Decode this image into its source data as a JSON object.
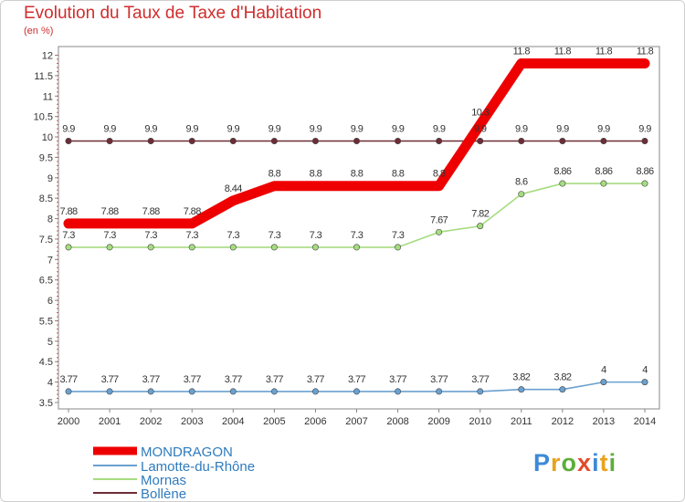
{
  "header": {
    "title": "Evolution du Taux de Taxe d'Habitation",
    "subtitle": "(en %)"
  },
  "brand": {
    "text": "Proxiti",
    "letters": [
      "P",
      "r",
      "o",
      "x",
      "i",
      "t",
      "i"
    ],
    "colors": [
      "#3d8ad6",
      "#e8a21f",
      "#5cae3a",
      "#e24b2a",
      "#3d8ad6",
      "#e8a21f",
      "#5cae3a"
    ]
  },
  "chart_data": {
    "type": "line",
    "x": [
      "2000",
      "2001",
      "2002",
      "2003",
      "2004",
      "2005",
      "2006",
      "2007",
      "2008",
      "2009",
      "2010",
      "2011",
      "2012",
      "2013",
      "2014"
    ],
    "ylim": [
      3.5,
      12
    ],
    "yticks": [
      "3.5",
      "4",
      "4.5",
      "5",
      "5.5",
      "6",
      "6.5",
      "7",
      "7.5",
      "8",
      "8.5",
      "9",
      "9.5",
      "10",
      "10.5",
      "11",
      "11.5",
      "12"
    ],
    "grid": false,
    "legend_position": "bottom-left",
    "series": [
      {
        "name": "MONDRAGON",
        "color": "#ee0000",
        "values": [
          7.88,
          7.88,
          7.88,
          7.88,
          8.44,
          8.8,
          8.8,
          8.8,
          8.8,
          8.8,
          10.3,
          11.8,
          11.8,
          11.8,
          11.8
        ],
        "labels": [
          "7.88",
          "7.88",
          "7.88",
          "7.88",
          "8.44",
          "8.8",
          "8.8",
          "8.8",
          "8.8",
          "8.8",
          "10.3",
          "11.8",
          "11.8",
          "11.8",
          "11.8"
        ]
      },
      {
        "name": "Lamotte-du-Rhône",
        "color": "#6aa0cf",
        "values": [
          3.77,
          3.77,
          3.77,
          3.77,
          3.77,
          3.77,
          3.77,
          3.77,
          3.77,
          3.77,
          3.77,
          3.82,
          3.82,
          4,
          4
        ],
        "labels": [
          "3.77",
          "3.77",
          "3.77",
          "3.77",
          "3.77",
          "3.77",
          "3.77",
          "3.77",
          "3.77",
          "3.77",
          "3.77",
          "3.82",
          "3.82",
          "4",
          "4"
        ]
      },
      {
        "name": "Mornas",
        "color": "#a6dc80",
        "values": [
          7.3,
          7.3,
          7.3,
          7.3,
          7.3,
          7.3,
          7.3,
          7.3,
          7.3,
          7.67,
          7.82,
          8.6,
          8.86,
          8.86,
          8.86
        ],
        "labels": [
          "7.3",
          "7.3",
          "7.3",
          "7.3",
          "7.3",
          "7.3",
          "7.3",
          "7.3",
          "7.3",
          "7.67",
          "7.82",
          "8.6",
          "8.86",
          "8.86",
          "8.86"
        ]
      },
      {
        "name": "Bollène",
        "color": "#6e2c36",
        "values": [
          9.9,
          9.9,
          9.9,
          9.9,
          9.9,
          9.9,
          9.9,
          9.9,
          9.9,
          9.9,
          9.9,
          9.9,
          9.9,
          9.9,
          9.9
        ],
        "labels": [
          "9.9",
          "9.9",
          "9.9",
          "9.9",
          "9.9",
          "9.9",
          "9.9",
          "9.9",
          "9.9",
          "9.9",
          "9.9",
          "9.9",
          "9.9",
          "9.9",
          "9.9"
        ]
      }
    ]
  }
}
